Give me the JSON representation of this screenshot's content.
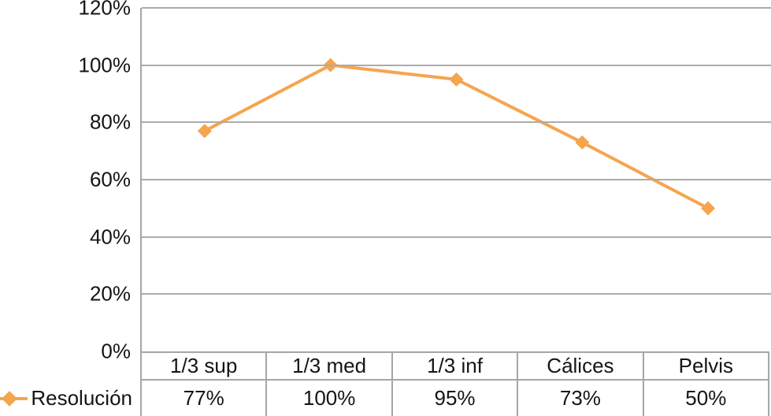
{
  "chart_data": {
    "type": "line",
    "title": "",
    "categories": [
      "1/3 sup",
      "1/3 med",
      "1/3 inf",
      "Cálices",
      "Pelvis"
    ],
    "series": [
      {
        "name": "Resolución",
        "values": [
          77,
          100,
          95,
          73,
          50
        ]
      }
    ],
    "value_labels": [
      "77%",
      "100%",
      "95%",
      "73%",
      "50%"
    ],
    "y_ticks": [
      {
        "label": "120%",
        "value": 120
      },
      {
        "label": "100%",
        "value": 100
      },
      {
        "label": "80%",
        "value": 80
      },
      {
        "label": "60%",
        "value": 60
      },
      {
        "label": "40%",
        "value": 40
      },
      {
        "label": "20%",
        "value": 20
      },
      {
        "label": "0%",
        "value": 0
      }
    ],
    "ylim": [
      0,
      120
    ],
    "grid": true,
    "legend_position": "bottom-left",
    "marker": "diamond",
    "colors": {
      "series": "#F5A54E",
      "gridline": "#ABABAB",
      "border": "#A6A6A6",
      "text": "#141414"
    }
  }
}
